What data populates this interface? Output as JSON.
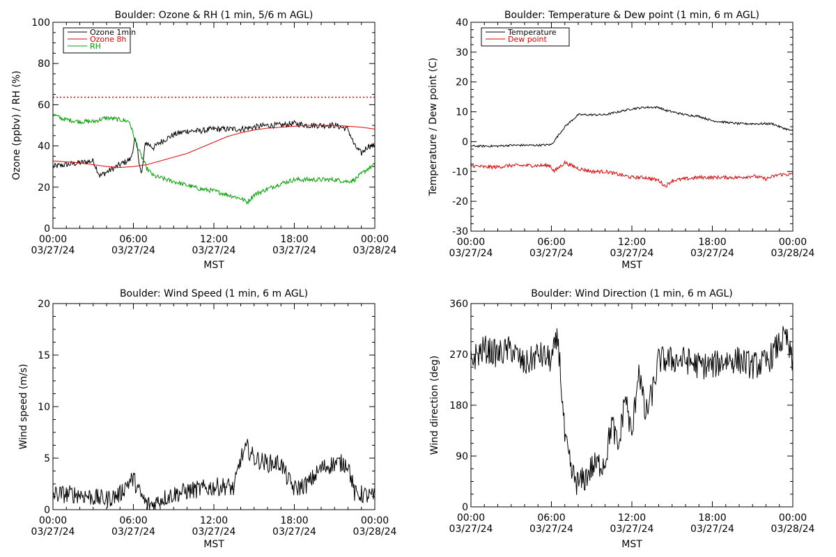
{
  "colors": {
    "black": "#000000",
    "red": "#e00000",
    "green": "#00a000"
  },
  "chart_data": [
    {
      "type": "line",
      "title": "Boulder: Ozone & RH (1 min, 5/6 m AGL)",
      "xlabel": "MST",
      "ylabel": "Ozone (ppbv) / RH (%)",
      "xlim": [
        0,
        24
      ],
      "ylim": [
        0,
        110
      ],
      "yticks": [
        "0",
        "20",
        "40",
        "60",
        "80",
        "100"
      ],
      "xticks": [
        {
          "time": "00:00",
          "date": "03/27/24"
        },
        {
          "time": "06:00",
          "date": "03/27/24"
        },
        {
          "time": "12:00",
          "date": "03/27/24"
        },
        {
          "time": "18:00",
          "date": "03/27/24"
        },
        {
          "time": "00:00",
          "date": "03/28/24"
        }
      ],
      "legend_position": "top-left",
      "reference_lines": [
        {
          "y": 70,
          "color": "#e00000",
          "style": "dotted"
        }
      ],
      "series": [
        {
          "name": "Ozone 1min",
          "color": "#000000",
          "noise": 1.6,
          "x": [
            0,
            1,
            2,
            3,
            3.5,
            4,
            5,
            5.8,
            6.1,
            6.3,
            6.6,
            6.9,
            7.5,
            8,
            9,
            10,
            11,
            12,
            13,
            14,
            15,
            16,
            17,
            18,
            19,
            20,
            21,
            22,
            22.5,
            23,
            23.5,
            24
          ],
          "y": [
            33,
            34,
            35,
            36,
            28,
            30,
            34,
            37,
            47,
            42,
            28,
            46,
            43,
            46,
            50,
            52,
            52,
            53,
            53,
            53,
            54,
            55,
            55,
            56,
            55,
            55,
            55,
            53,
            44,
            40,
            44,
            44
          ]
        },
        {
          "name": "Ozone 8h",
          "color": "#e00000",
          "noise": 0,
          "x": [
            0,
            1,
            2,
            3,
            4,
            5,
            6,
            7,
            8,
            9,
            10,
            11,
            12,
            13,
            14,
            15,
            16,
            17,
            18,
            19,
            20,
            21,
            22,
            23,
            24
          ],
          "y": [
            36,
            35.5,
            35,
            34,
            33,
            32.5,
            33,
            34,
            36,
            38,
            40,
            43,
            46,
            49,
            51,
            52.5,
            53.5,
            54,
            54.5,
            55,
            55,
            55,
            54.5,
            54,
            53
          ]
        },
        {
          "name": "RH",
          "color": "#00a000",
          "noise": 1.2,
          "x": [
            0,
            0.5,
            1,
            2,
            3,
            3.5,
            4,
            5,
            5.7,
            6,
            6.5,
            7,
            7.5,
            8,
            9,
            10,
            11,
            12,
            13,
            14,
            14.5,
            15,
            16,
            17,
            18,
            19,
            20,
            21,
            22,
            22.5,
            23,
            23.5,
            24
          ],
          "y": [
            61,
            59,
            58,
            57,
            57,
            58,
            59,
            58,
            57,
            50,
            40,
            32,
            28,
            27,
            25,
            23,
            21,
            20,
            18,
            16,
            14,
            18,
            21,
            24,
            26,
            26,
            26,
            26,
            25,
            26,
            29,
            32,
            34
          ]
        }
      ]
    },
    {
      "type": "line",
      "title": "Boulder: Temperature & Dew point (1 min, 6 m AGL)",
      "xlabel": "MST",
      "ylabel": "Temperature / Dew point (C)",
      "xlim": [
        0,
        24
      ],
      "ylim": [
        -30,
        40
      ],
      "yticks": [
        "-30",
        "-20",
        "-10",
        "0",
        "10",
        "20",
        "30",
        "40"
      ],
      "xticks": [
        {
          "time": "00:00",
          "date": "03/27/24"
        },
        {
          "time": "06:00",
          "date": "03/27/24"
        },
        {
          "time": "12:00",
          "date": "03/27/24"
        },
        {
          "time": "18:00",
          "date": "03/27/24"
        },
        {
          "time": "00:00",
          "date": "03/28/24"
        }
      ],
      "legend_position": "top-left",
      "series": [
        {
          "name": "Temperature",
          "color": "#000000",
          "noise": 0.35,
          "x": [
            0,
            1,
            2,
            3,
            4,
            5,
            6,
            6.5,
            7,
            7.5,
            8,
            9,
            10,
            11,
            12,
            13,
            14,
            14.5,
            15,
            16,
            17,
            18,
            19,
            20,
            21,
            22,
            22.5,
            23,
            24
          ],
          "y": [
            -1.5,
            -1.5,
            -1.5,
            -1.2,
            -1.2,
            -1.2,
            -1,
            2,
            5,
            7,
            9,
            9,
            9,
            10,
            11,
            11.5,
            11.5,
            10.5,
            10,
            9,
            8.5,
            7,
            6.5,
            6,
            6,
            6,
            6,
            5,
            3.5
          ]
        },
        {
          "name": "Dew point",
          "color": "#e00000",
          "noise": 0.6,
          "x": [
            0,
            1,
            2,
            3,
            4,
            5,
            5.9,
            6.2,
            7,
            7.5,
            8,
            9,
            10,
            11,
            12,
            13,
            14,
            14.5,
            15,
            16,
            17,
            18,
            19,
            20,
            21,
            22,
            23,
            24
          ],
          "y": [
            -8,
            -8.5,
            -8.5,
            -8,
            -8,
            -8,
            -8,
            -10,
            -7,
            -8,
            -9,
            -10,
            -10,
            -11,
            -12,
            -12,
            -13,
            -15,
            -13,
            -12.5,
            -12,
            -12,
            -12,
            -12,
            -11.5,
            -12.5,
            -11,
            -11
          ]
        }
      ]
    },
    {
      "type": "line",
      "title": "Boulder: Wind Speed (1 min, 6 m AGL)",
      "xlabel": "MST",
      "ylabel": "Wind speed (m/s)",
      "xlim": [
        0,
        24
      ],
      "ylim": [
        0,
        20
      ],
      "yticks": [
        "0",
        "5",
        "10",
        "15",
        "20"
      ],
      "xticks": [
        {
          "time": "00:00",
          "date": "03/27/24"
        },
        {
          "time": "06:00",
          "date": "03/27/24"
        },
        {
          "time": "12:00",
          "date": "03/27/24"
        },
        {
          "time": "18:00",
          "date": "03/27/24"
        },
        {
          "time": "00:00",
          "date": "03/28/24"
        }
      ],
      "series": [
        {
          "name": "",
          "color": "#000000",
          "noise": 0.9,
          "x": [
            0,
            1,
            2,
            3,
            4,
            5,
            5.5,
            6,
            6.5,
            7,
            7.5,
            8,
            9,
            10,
            11,
            12,
            13,
            13.5,
            14,
            14.5,
            15,
            16,
            17,
            17.5,
            18,
            19,
            20,
            21,
            22,
            22.5,
            23,
            24
          ],
          "y": [
            1.5,
            1.5,
            1.5,
            1.2,
            1,
            1.5,
            2.5,
            3,
            1.5,
            0.5,
            0.5,
            1,
            1.5,
            1.8,
            2,
            2.2,
            2.3,
            2,
            5,
            6,
            5,
            4.5,
            4.5,
            3,
            2,
            2.5,
            4,
            4.5,
            4.5,
            1.5,
            1.5,
            1.2
          ]
        }
      ]
    },
    {
      "type": "line",
      "title": "Boulder: Wind Direction (1 min, 6 m AGL)",
      "xlabel": "MST",
      "ylabel": "Wind direction (deg)",
      "xlim": [
        0,
        24
      ],
      "ylim": [
        0,
        360
      ],
      "yticks": [
        "0",
        "90",
        "180",
        "270",
        "360"
      ],
      "xticks": [
        {
          "time": "00:00",
          "date": "03/27/24"
        },
        {
          "time": "06:00",
          "date": "03/27/24"
        },
        {
          "time": "12:00",
          "date": "03/27/24"
        },
        {
          "time": "18:00",
          "date": "03/27/24"
        },
        {
          "time": "00:00",
          "date": "03/28/24"
        }
      ],
      "series": [
        {
          "name": "",
          "color": "#000000",
          "noise": 25,
          "x": [
            0,
            1,
            2,
            3,
            4,
            5,
            6,
            6.5,
            7,
            7.5,
            8,
            8.5,
            9,
            10,
            10.5,
            11,
            11.5,
            12,
            12.5,
            13,
            13.5,
            14,
            15,
            16,
            17,
            18,
            19,
            20,
            21,
            22,
            22.5,
            23,
            23.5,
            24
          ],
          "y": [
            260,
            280,
            270,
            280,
            250,
            270,
            260,
            300,
            120,
            60,
            40,
            50,
            70,
            80,
            150,
            100,
            200,
            120,
            250,
            160,
            200,
            260,
            260,
            260,
            250,
            250,
            260,
            260,
            250,
            255,
            270,
            290,
            300,
            250
          ]
        }
      ]
    }
  ]
}
